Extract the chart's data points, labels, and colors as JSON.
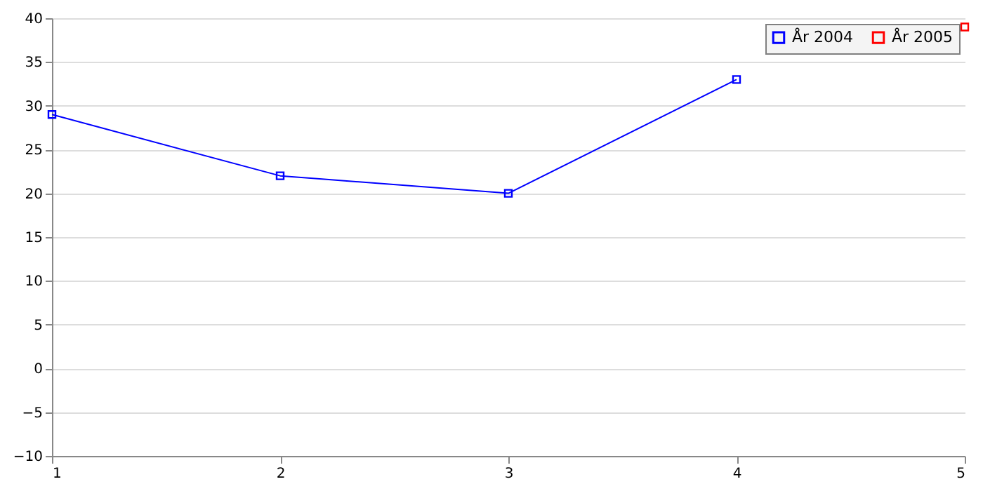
{
  "chart_data": {
    "type": "line",
    "x": [
      1,
      2,
      3,
      4,
      5
    ],
    "series": [
      {
        "name": "År 2004",
        "color": "#0000ff",
        "values": [
          29,
          22,
          20,
          33,
          null
        ]
      },
      {
        "name": "År 2005",
        "color": "#ff0000",
        "values": [
          null,
          null,
          null,
          null,
          39
        ]
      }
    ],
    "xlim": [
      1,
      5
    ],
    "xticks": [
      1,
      2,
      3,
      4,
      5
    ],
    "ylim": [
      -10,
      40
    ],
    "yticks": [
      -10,
      -5,
      0,
      5,
      10,
      15,
      20,
      25,
      30,
      35,
      40
    ],
    "grid": "y",
    "legend": "top right",
    "marker": "square",
    "line_style": "solid"
  }
}
